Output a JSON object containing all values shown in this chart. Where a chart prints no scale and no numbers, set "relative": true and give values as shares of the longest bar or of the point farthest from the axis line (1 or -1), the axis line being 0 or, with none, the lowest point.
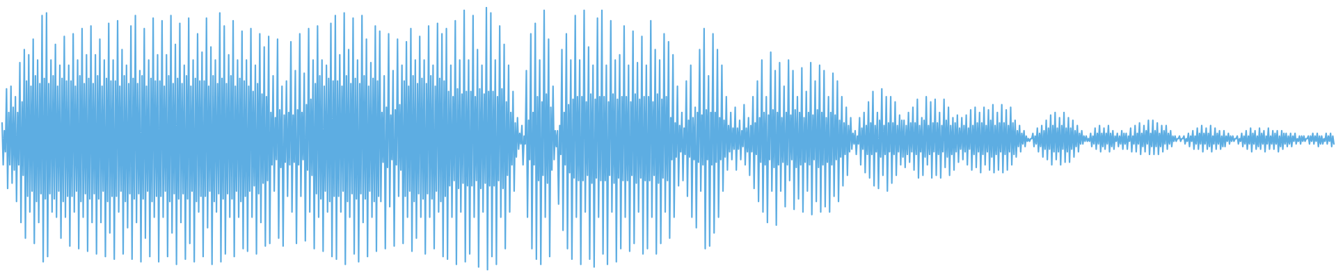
{
  "chart_data": {
    "type": "line",
    "relative": true,
    "color": "#5dade2",
    "categories": [
      null,
      null,
      null,
      null,
      null,
      null,
      null,
      null,
      null,
      null,
      null,
      null,
      null,
      null,
      null,
      null,
      null,
      null,
      null,
      null,
      null,
      null,
      null,
      null,
      null,
      null,
      null,
      null,
      null,
      null,
      null,
      null,
      null,
      null,
      null,
      null,
      null,
      null,
      null,
      null,
      null,
      null,
      null,
      null,
      null,
      null,
      null,
      null,
      null,
      null,
      null,
      null,
      null,
      null,
      null,
      null,
      null,
      null,
      null,
      null,
      null,
      null,
      null,
      null,
      null,
      null,
      null,
      null,
      null,
      null,
      null,
      null,
      null,
      null,
      null,
      null,
      null,
      null,
      null,
      null,
      null,
      null,
      null,
      null,
      null,
      null,
      null,
      null,
      null,
      null,
      null,
      null,
      null,
      null,
      null,
      null,
      null,
      null,
      null,
      null,
      null,
      null,
      null,
      null,
      null,
      null,
      null,
      null,
      null,
      null,
      null,
      null,
      null,
      null,
      null,
      null,
      null,
      null,
      null,
      null,
      null,
      null,
      null,
      null,
      null,
      null,
      null,
      null,
      null,
      null,
      null,
      null,
      null,
      null,
      null,
      null,
      null,
      null,
      null,
      null,
      null,
      null,
      null,
      null,
      null,
      null,
      null,
      null,
      null,
      null,
      null,
      null,
      null,
      null,
      null,
      null,
      null,
      null,
      null,
      null,
      null,
      null,
      null,
      null,
      null,
      null,
      null,
      null,
      null,
      null,
      null,
      null,
      null,
      null,
      null,
      null,
      null,
      null,
      null,
      null,
      null,
      null,
      null,
      null,
      null,
      null,
      null,
      null,
      null,
      null,
      null,
      null,
      null,
      null,
      null,
      null,
      null,
      null,
      null,
      null,
      null,
      null,
      null,
      null,
      null,
      null,
      null,
      null,
      null,
      null,
      null,
      null,
      null,
      null,
      null,
      null,
      null,
      null,
      null,
      null,
      null,
      null,
      null,
      null,
      null,
      null,
      null,
      null,
      null,
      null,
      null,
      null,
      null,
      null,
      null,
      null,
      null,
      null,
      null,
      null,
      null,
      null,
      null,
      null,
      null,
      null,
      null,
      null,
      null,
      null,
      null,
      null,
      null,
      null,
      null,
      null,
      null,
      null,
      null,
      null,
      null,
      null,
      null,
      null,
      null,
      null,
      null,
      null,
      null,
      null,
      null,
      null,
      null,
      null,
      null,
      null,
      null,
      null,
      null,
      null,
      null,
      null,
      null,
      null,
      null,
      null,
      null,
      null,
      null,
      null,
      null,
      null,
      null,
      null,
      null,
      null,
      null,
      null,
      null,
      null,
      null,
      null,
      null,
      null,
      null,
      null,
      null,
      null,
      null,
      null,
      null,
      null,
      null,
      null,
      null,
      null,
      null,
      null,
      null,
      null,
      null,
      null,
      null,
      null,
      null,
      null,
      null,
      null,
      null,
      null,
      null,
      null,
      null,
      null,
      null,
      null,
      null,
      null,
      null,
      null,
      null,
      null,
      null,
      null,
      null,
      null,
      null,
      null,
      null,
      null,
      null,
      null,
      null,
      null,
      null,
      null,
      null,
      null,
      null,
      null,
      null,
      null,
      null,
      null,
      null,
      null,
      null,
      null,
      null,
      null,
      null,
      null,
      null,
      null,
      null,
      null,
      null,
      null,
      null,
      null,
      null,
      null,
      null,
      null,
      null,
      null,
      null,
      null,
      null,
      null,
      null,
      null,
      null,
      null,
      null,
      null,
      null,
      null,
      null,
      null,
      null,
      null,
      null,
      null,
      null,
      null,
      null,
      null,
      null,
      null,
      null,
      null,
      null,
      null,
      null,
      null,
      null,
      null,
      null,
      null,
      null,
      null,
      null,
      null,
      null,
      null,
      null,
      null,
      null,
      null,
      null,
      null,
      null,
      null,
      null,
      null,
      null,
      null,
      null,
      null,
      null,
      null,
      null,
      null,
      null,
      null,
      null,
      null,
      null,
      null,
      null,
      null,
      null,
      null,
      null,
      null,
      null,
      null,
      null,
      null,
      null,
      null,
      null,
      null,
      null,
      null,
      null,
      null,
      null,
      null,
      null,
      null,
      null,
      null,
      null,
      null,
      null,
      null,
      null,
      null,
      null,
      null,
      null,
      null,
      null,
      null,
      null,
      null,
      null,
      null,
      null,
      null,
      null,
      null,
      null,
      null,
      null,
      null,
      null,
      null,
      null,
      null,
      null,
      null,
      null,
      null,
      null,
      null,
      null,
      null,
      null,
      null,
      null,
      null,
      null,
      null,
      null,
      null,
      null,
      null,
      null,
      null,
      null,
      null,
      null,
      null,
      null,
      null,
      null,
      null,
      null,
      null,
      null,
      null,
      null,
      null,
      null,
      null,
      null,
      null,
      null,
      null,
      null,
      null,
      null,
      null,
      null,
      null,
      null,
      null,
      null,
      null,
      null,
      null,
      null,
      null,
      null,
      null,
      null,
      null,
      null,
      null,
      null,
      null,
      null,
      null,
      null,
      null,
      null,
      null,
      null,
      null,
      null,
      null,
      null,
      null,
      null,
      null,
      null,
      null,
      null,
      null,
      null,
      null,
      null,
      null,
      null,
      null,
      null,
      null,
      null,
      null,
      null,
      null,
      null,
      null,
      null,
      null,
      null,
      null,
      null,
      null,
      null,
      null,
      null,
      null,
      null,
      null,
      null,
      null,
      null,
      null,
      null,
      null,
      null,
      null,
      null,
      null,
      null,
      null,
      null,
      null,
      null,
      null,
      null,
      null,
      null,
      null,
      null,
      null,
      null,
      null,
      null,
      null,
      null,
      null,
      null,
      null,
      null,
      null,
      null,
      null,
      null,
      null,
      null,
      null,
      null,
      null,
      null,
      null,
      null,
      null,
      null,
      null,
      null,
      null,
      null,
      null,
      null,
      null,
      null,
      null,
      null,
      null,
      null,
      null,
      null,
      null,
      null,
      null,
      null,
      null,
      null,
      null,
      null,
      null,
      null,
      null,
      null,
      null,
      null,
      null,
      null,
      null,
      null,
      null,
      null,
      null,
      null,
      null,
      null,
      null,
      null,
      null,
      null,
      null,
      null,
      null,
      null,
      null,
      null,
      null,
      null,
      null,
      null,
      null,
      null,
      null,
      null,
      null,
      null,
      null,
      null,
      null,
      null,
      null,
      null,
      null,
      null,
      null,
      null,
      null,
      null,
      null,
      null,
      null,
      null,
      null,
      null,
      null,
      null,
      null,
      null,
      null,
      null,
      null,
      null,
      null,
      null,
      null,
      null,
      null,
      null,
      null,
      null,
      null,
      null,
      null,
      null,
      null,
      null,
      null,
      null,
      null,
      null,
      null,
      null,
      null,
      null,
      null,
      null,
      null,
      null,
      null,
      null,
      null,
      null,
      null,
      null,
      null,
      null,
      null,
      null,
      null,
      null,
      null,
      null,
      null,
      null,
      null,
      null,
      null,
      null,
      null,
      null,
      null,
      null,
      null,
      null,
      null,
      null,
      null,
      null,
      null,
      null,
      null,
      null,
      null,
      null,
      null,
      null,
      null,
      null,
      null,
      null,
      null,
      null,
      null,
      null,
      null,
      null,
      null,
      null,
      null,
      null,
      null,
      null,
      null,
      null,
      null,
      null,
      null,
      null,
      null,
      null,
      null,
      null,
      null,
      null,
      null,
      null,
      null,
      null,
      null,
      null,
      null,
      null,
      null,
      null,
      null,
      null,
      null,
      null,
      null,
      null,
      null,
      null,
      null,
      null,
      null,
      null,
      null,
      null,
      null,
      null,
      null,
      null,
      null,
      null,
      null,
      null,
      null,
      null,
      null,
      null,
      null,
      null,
      null,
      null,
      null,
      null,
      null,
      null,
      null,
      null,
      null,
      null,
      null,
      null,
      null,
      null,
      null,
      null,
      null,
      null,
      null,
      null,
      null,
      null,
      null,
      null,
      null,
      null,
      null,
      null,
      null,
      null,
      null,
      null,
      null,
      null,
      null,
      null,
      null,
      null,
      null,
      null,
      null,
      null,
      null,
      null,
      null,
      null,
      null,
      null,
      null,
      null,
      null,
      null,
      null,
      null,
      null,
      null,
      null,
      null,
      null,
      null,
      null,
      null,
      null,
      null,
      null,
      null,
      null,
      null,
      null,
      null,
      null,
      null,
      null,
      null,
      null,
      null,
      null,
      null,
      null,
      null,
      null,
      null,
      null,
      null,
      null,
      null,
      null,
      null,
      null,
      null,
      null,
      null,
      null,
      null,
      null,
      null,
      null,
      null,
      null,
      null,
      null,
      null,
      null,
      null,
      null,
      null,
      null,
      null,
      null,
      null,
      null,
      null,
      null,
      null,
      null,
      null,
      null,
      null,
      null,
      null,
      null,
      null,
      null,
      null,
      null,
      null,
      null,
      null,
      null,
      null,
      null,
      null,
      null,
      null,
      null,
      null,
      null,
      null,
      null,
      null,
      null,
      null,
      null,
      null,
      null,
      null,
      null,
      null,
      null,
      null,
      null,
      null,
      null,
      null,
      null,
      null,
      null,
      null,
      null,
      null,
      null,
      null,
      null,
      null,
      null,
      null,
      null,
      null,
      null,
      null,
      null,
      null,
      null,
      null,
      null,
      null,
      null,
      null,
      null,
      null,
      null,
      null,
      null,
      null,
      null,
      null,
      null,
      null,
      null,
      null,
      null,
      null,
      null,
      null,
      null,
      null,
      null,
      null,
      null,
      null,
      null,
      null,
      null,
      null,
      null,
      null,
      null,
      null,
      null,
      null,
      null,
      null,
      null,
      null,
      null,
      null,
      null,
      null,
      null,
      null,
      null,
      null,
      null,
      null,
      null,
      null,
      null,
      null,
      null,
      null,
      null,
      null,
      null,
      null,
      null,
      null,
      null,
      null,
      null,
      null,
      null,
      null,
      null,
      null,
      null,
      null,
      null,
      null,
      null,
      null,
      null,
      null,
      null,
      null,
      null,
      null,
      null,
      null,
      null,
      null,
      null,
      null,
      null,
      null,
      null,
      null,
      null,
      null,
      null,
      null,
      null,
      null,
      null,
      null,
      null,
      null,
      null,
      null,
      null,
      null,
      null,
      null,
      null,
      null,
      null,
      null,
      null,
      null,
      null,
      null,
      null,
      null,
      null,
      null,
      null,
      null,
      null,
      null,
      null,
      null,
      null,
      null,
      null,
      null,
      null,
      null,
      null,
      null,
      null,
      null,
      null,
      null,
      null,
      null,
      null,
      null,
      null,
      null,
      null,
      null,
      null,
      null,
      null,
      null,
      null,
      null,
      null,
      null,
      null,
      null,
      null,
      null,
      null
    ],
    "values": [
      0.56,
      0.4,
      0.53,
      0.45,
      0.69,
      0.31,
      0.6,
      0.4,
      0.7,
      0.33,
      0.62,
      0.38,
      0.66,
      0.26,
      0.6,
      0.4,
      0.79,
      0.18,
      0.64,
      0.36,
      0.84,
      0.12,
      0.72,
      0.28,
      0.82,
      0.22,
      0.7,
      0.3,
      0.88,
      0.1,
      0.74,
      0.26,
      0.8,
      0.18,
      0.71,
      0.29,
      0.97,
      0.03,
      0.73,
      0.27,
      0.98,
      0.05,
      0.71,
      0.29,
      0.8,
      0.22,
      0.74,
      0.27,
      0.86,
      0.2,
      0.7,
      0.3,
      0.78,
      0.12,
      0.73,
      0.26,
      0.89,
      0.2,
      0.72,
      0.28,
      0.78,
      0.09,
      0.72,
      0.28,
      0.9,
      0.22,
      0.7,
      0.3,
      0.8,
      0.08,
      0.74,
      0.26,
      0.92,
      0.2,
      0.71,
      0.29,
      0.82,
      0.07,
      0.73,
      0.27,
      0.93,
      0.18,
      0.71,
      0.29,
      0.82,
      0.06,
      0.74,
      0.27,
      0.88,
      0.18,
      0.7,
      0.3,
      0.8,
      0.05,
      0.73,
      0.26,
      0.94,
      0.14,
      0.72,
      0.28,
      0.8,
      0.04,
      0.72,
      0.28,
      0.95,
      0.22,
      0.7,
      0.3,
      0.84,
      0.06,
      0.74,
      0.26,
      0.78,
      0.16,
      0.71,
      0.29,
      0.93,
      0.04,
      0.73,
      0.27,
      0.97,
      0.18,
      0.71,
      0.29,
      0.76,
      0.03,
      0.74,
      0.27,
      0.92,
      0.12,
      0.7,
      0.3,
      0.8,
      0.05,
      0.73,
      0.26,
      0.96,
      0.2,
      0.72,
      0.28,
      0.82,
      0.03,
      0.72,
      0.28,
      0.95,
      0.2,
      0.7,
      0.3,
      0.82,
      0.05,
      0.74,
      0.26,
      0.97,
      0.14,
      0.71,
      0.29,
      0.86,
      0.02,
      0.73,
      0.27,
      0.94,
      0.18,
      0.71,
      0.29,
      0.78,
      0.04,
      0.74,
      0.27,
      0.96,
      0.1,
      0.7,
      0.3,
      0.8,
      0.03,
      0.73,
      0.26,
      0.9,
      0.22,
      0.72,
      0.28,
      0.83,
      0.05,
      0.72,
      0.28,
      0.96,
      0.16,
      0.7,
      0.3,
      0.85,
      0.02,
      0.74,
      0.26,
      0.8,
      0.22,
      0.71,
      0.29,
      0.98,
      0.03,
      0.73,
      0.27,
      0.93,
      0.06,
      0.71,
      0.29,
      0.82,
      0.2,
      0.74,
      0.27,
      0.95,
      0.05,
      0.7,
      0.3,
      0.8,
      0.2,
      0.73,
      0.26,
      0.91,
      0.08,
      0.72,
      0.28,
      0.8,
      0.07,
      0.7,
      0.3,
      0.92,
      0.2,
      0.68,
      0.32,
      0.78,
      0.06,
      0.71,
      0.29,
      0.9,
      0.18,
      0.67,
      0.33,
      0.85,
      0.09,
      0.66,
      0.34,
      0.89,
      0.1,
      0.6,
      0.4,
      0.74,
      0.3,
      0.58,
      0.42,
      0.88,
      0.12,
      0.61,
      0.39,
      0.7,
      0.09,
      0.59,
      0.41,
      0.72,
      0.28,
      0.6,
      0.4,
      0.87,
      0.22,
      0.59,
      0.41,
      0.76,
      0.1,
      0.61,
      0.4,
      0.9,
      0.28,
      0.6,
      0.42,
      0.75,
      0.11,
      0.63,
      0.38,
      0.92,
      0.22,
      0.65,
      0.36,
      0.8,
      0.08,
      0.71,
      0.29,
      0.93,
      0.2,
      0.74,
      0.27,
      0.8,
      0.07,
      0.7,
      0.3,
      0.78,
      0.22,
      0.73,
      0.26,
      0.94,
      0.05,
      0.72,
      0.28,
      0.97,
      0.04,
      0.72,
      0.28,
      0.82,
      0.22,
      0.7,
      0.3,
      0.98,
      0.02,
      0.74,
      0.26,
      0.84,
      0.2,
      0.71,
      0.29,
      0.96,
      0.06,
      0.73,
      0.27,
      0.8,
      0.03,
      0.71,
      0.29,
      0.97,
      0.18,
      0.74,
      0.27,
      0.88,
      0.05,
      0.7,
      0.3,
      0.79,
      0.2,
      0.73,
      0.26,
      0.93,
      0.07,
      0.72,
      0.28,
      0.91,
      0.26,
      0.6,
      0.41,
      0.74,
      0.08,
      0.62,
      0.39,
      0.9,
      0.24,
      0.59,
      0.42,
      0.76,
      0.09,
      0.61,
      0.4,
      0.88,
      0.28,
      0.63,
      0.38,
      0.78,
      0.1,
      0.72,
      0.28,
      0.87,
      0.2,
      0.7,
      0.3,
      0.92,
      0.07,
      0.74,
      0.26,
      0.8,
      0.12,
      0.71,
      0.29,
      0.89,
      0.2,
      0.73,
      0.27,
      0.8,
      0.06,
      0.71,
      0.29,
      0.93,
      0.2,
      0.74,
      0.27,
      0.78,
      0.08,
      0.7,
      0.3,
      0.94,
      0.22,
      0.73,
      0.26,
      0.9,
      0.05,
      0.72,
      0.28,
      0.92,
      0.04,
      0.68,
      0.32,
      0.78,
      0.2,
      0.66,
      0.34,
      0.95,
      0.02,
      0.69,
      0.31,
      0.8,
      0.22,
      0.67,
      0.33,
      0.99,
      0.03,
      0.68,
      0.32,
      0.8,
      0.06,
      0.68,
      0.32,
      0.97,
      0.2,
      0.66,
      0.34,
      0.84,
      0.01,
      0.69,
      0.31,
      0.78,
      0.22,
      0.67,
      0.33,
      1.0,
      0.0,
      0.68,
      0.32,
      0.98,
      0.05,
      0.68,
      0.32,
      0.8,
      0.02,
      0.66,
      0.34,
      0.93,
      0.2,
      0.69,
      0.31,
      0.86,
      0.08,
      0.64,
      0.36,
      0.78,
      0.22,
      0.6,
      0.4,
      0.68,
      0.3,
      0.56,
      0.43,
      0.58,
      0.46,
      0.52,
      0.48,
      0.55,
      0.4,
      0.51,
      0.48,
      0.76,
      0.2,
      0.57,
      0.42,
      0.9,
      0.08,
      0.6,
      0.4,
      0.94,
      0.04,
      0.66,
      0.34,
      0.8,
      0.02,
      0.64,
      0.36,
      0.99,
      0.2,
      0.67,
      0.33,
      0.88,
      0.05,
      0.62,
      0.38,
      0.7,
      0.42,
      0.53,
      0.47,
      0.53,
      0.25,
      0.55,
      0.44,
      0.84,
      0.15,
      0.6,
      0.4,
      0.9,
      0.08,
      0.63,
      0.37,
      0.8,
      0.04,
      0.65,
      0.35,
      0.97,
      0.2,
      0.66,
      0.34,
      0.8,
      0.02,
      0.66,
      0.34,
      0.99,
      0.22,
      0.64,
      0.36,
      0.85,
      0.04,
      0.67,
      0.33,
      0.78,
      0.01,
      0.65,
      0.35,
      0.96,
      0.2,
      0.66,
      0.34,
      0.99,
      0.06,
      0.66,
      0.34,
      0.78,
      0.02,
      0.64,
      0.36,
      0.95,
      0.22,
      0.67,
      0.33,
      0.8,
      0.03,
      0.65,
      0.35,
      0.82,
      0.08,
      0.66,
      0.34,
      0.93,
      0.2,
      0.66,
      0.34,
      0.78,
      0.07,
      0.64,
      0.36,
      0.91,
      0.1,
      0.67,
      0.33,
      0.79,
      0.22,
      0.65,
      0.35,
      0.89,
      0.06,
      0.66,
      0.34,
      0.78,
      0.08,
      0.66,
      0.34,
      0.95,
      0.2,
      0.64,
      0.36,
      0.84,
      0.06,
      0.67,
      0.33,
      0.8,
      0.1,
      0.65,
      0.35,
      0.9,
      0.22,
      0.66,
      0.34,
      0.87,
      0.12,
      0.58,
      0.42,
      0.82,
      0.2,
      0.56,
      0.43,
      0.7,
      0.32,
      0.55,
      0.45,
      0.6,
      0.34,
      0.54,
      0.44,
      0.72,
      0.28,
      0.57,
      0.43,
      0.78,
      0.2,
      0.58,
      0.42,
      0.62,
      0.16,
      0.6,
      0.41,
      0.84,
      0.3,
      0.59,
      0.4,
      0.92,
      0.08,
      0.61,
      0.42,
      0.74,
      0.09,
      0.6,
      0.4,
      0.9,
      0.14,
      0.6,
      0.41,
      0.84,
      0.2,
      0.58,
      0.42,
      0.78,
      0.3,
      0.57,
      0.43,
      0.66,
      0.38,
      0.55,
      0.45,
      0.6,
      0.42,
      0.54,
      0.46,
      0.62,
      0.38,
      0.54,
      0.46,
      0.57,
      0.42,
      0.53,
      0.47,
      0.63,
      0.4,
      0.54,
      0.45,
      0.58,
      0.36,
      0.55,
      0.45,
      0.66,
      0.31,
      0.56,
      0.44,
      0.72,
      0.26,
      0.58,
      0.41,
      0.8,
      0.22,
      0.6,
      0.4,
      0.66,
      0.18,
      0.59,
      0.42,
      0.83,
      0.3,
      0.61,
      0.39,
      0.76,
      0.17,
      0.6,
      0.4,
      0.79,
      0.3,
      0.58,
      0.41,
      0.7,
      0.24,
      0.6,
      0.4,
      0.8,
      0.34,
      0.59,
      0.42,
      0.76,
      0.23,
      0.61,
      0.39,
      0.66,
      0.27,
      0.6,
      0.4,
      0.77,
      0.22,
      0.58,
      0.41,
      0.68,
      0.3,
      0.6,
      0.4,
      0.79,
      0.21,
      0.59,
      0.42,
      0.72,
      0.26,
      0.61,
      0.39,
      0.78,
      0.22,
      0.6,
      0.4,
      0.76,
      0.24,
      0.58,
      0.41,
      0.66,
      0.22,
      0.6,
      0.4,
      0.75,
      0.28,
      0.59,
      0.42,
      0.72,
      0.26,
      0.57,
      0.43,
      0.66,
      0.32,
      0.56,
      0.44,
      0.62,
      0.36,
      0.55,
      0.45,
      0.58,
      0.46,
      0.52,
      0.48,
      0.53,
      0.44,
      0.51,
      0.48,
      0.58,
      0.4,
      0.54,
      0.46,
      0.6,
      0.37,
      0.55,
      0.44,
      0.64,
      0.35,
      0.56,
      0.44,
      0.68,
      0.32,
      0.55,
      0.45,
      0.6,
      0.31,
      0.57,
      0.43,
      0.69,
      0.36,
      0.55,
      0.44,
      0.66,
      0.3,
      0.56,
      0.45,
      0.66,
      0.33,
      0.56,
      0.44,
      0.64,
      0.36,
      0.55,
      0.45,
      0.59,
      0.4,
      0.57,
      0.43,
      0.57,
      0.39,
      0.55,
      0.44,
      0.6,
      0.41,
      0.56,
      0.45,
      0.62,
      0.38,
      0.56,
      0.44,
      0.65,
      0.35,
      0.55,
      0.45,
      0.58,
      0.36,
      0.57,
      0.43,
      0.66,
      0.4,
      0.55,
      0.44,
      0.64,
      0.35,
      0.56,
      0.45,
      0.65,
      0.36,
      0.56,
      0.44,
      0.6,
      0.35,
      0.55,
      0.45,
      0.65,
      0.39,
      0.57,
      0.43,
      0.62,
      0.36,
      0.55,
      0.44,
      0.58,
      0.38,
      0.56,
      0.45,
      0.59,
      0.41,
      0.54,
      0.46,
      0.58,
      0.42,
      0.55,
      0.45,
      0.59,
      0.4,
      0.54,
      0.46,
      0.61,
      0.38,
      0.55,
      0.44,
      0.62,
      0.39,
      0.56,
      0.45,
      0.6,
      0.37,
      0.56,
      0.44,
      0.62,
      0.4,
      0.55,
      0.45,
      0.61,
      0.38,
      0.57,
      0.43,
      0.63,
      0.37,
      0.55,
      0.44,
      0.6,
      0.38,
      0.56,
      0.45,
      0.63,
      0.37,
      0.56,
      0.44,
      0.61,
      0.38,
      0.55,
      0.45,
      0.62,
      0.4,
      0.56,
      0.44,
      0.57,
      0.43,
      0.53,
      0.47,
      0.55,
      0.45,
      0.52,
      0.48,
      0.53,
      0.47,
      0.51,
      0.49,
      0.5,
      0.49,
      0.5,
      0.5,
      0.52,
      0.47,
      0.51,
      0.48,
      0.54,
      0.45,
      0.52,
      0.47,
      0.55,
      0.43,
      0.53,
      0.46,
      0.57,
      0.42,
      0.54,
      0.46,
      0.59,
      0.4,
      0.55,
      0.45,
      0.6,
      0.42,
      0.54,
      0.45,
      0.58,
      0.4,
      0.55,
      0.46,
      0.6,
      0.41,
      0.54,
      0.45,
      0.58,
      0.41,
      0.54,
      0.46,
      0.57,
      0.43,
      0.53,
      0.47,
      0.55,
      0.45,
      0.52,
      0.48,
      0.53,
      0.48,
      0.51,
      0.49,
      0.51,
      0.49,
      0.5,
      0.49,
      0.52,
      0.47,
      0.51,
      0.48,
      0.54,
      0.46,
      0.52,
      0.48,
      0.55,
      0.45,
      0.52,
      0.47,
      0.54,
      0.46,
      0.52,
      0.48,
      0.55,
      0.45,
      0.52,
      0.47,
      0.53,
      0.46,
      0.51,
      0.49,
      0.52,
      0.47,
      0.51,
      0.48,
      0.53,
      0.46,
      0.52,
      0.48,
      0.52,
      0.46,
      0.51,
      0.49,
      0.54,
      0.45,
      0.51,
      0.48,
      0.55,
      0.45,
      0.52,
      0.48,
      0.56,
      0.44,
      0.52,
      0.47,
      0.55,
      0.45,
      0.53,
      0.48,
      0.57,
      0.44,
      0.52,
      0.47,
      0.57,
      0.44,
      0.53,
      0.47,
      0.56,
      0.44,
      0.52,
      0.47,
      0.55,
      0.45,
      0.53,
      0.48,
      0.55,
      0.46,
      0.52,
      0.48,
      0.53,
      0.47,
      0.51,
      0.49,
      0.51,
      0.49,
      0.5,
      0.5,
      0.51,
      0.49,
      0.5,
      0.5,
      0.51,
      0.48,
      0.5,
      0.49,
      0.52,
      0.47,
      0.51,
      0.49,
      0.53,
      0.46,
      0.51,
      0.48,
      0.54,
      0.46,
      0.52,
      0.48,
      0.55,
      0.45,
      0.52,
      0.48,
      0.54,
      0.46,
      0.52,
      0.47,
      0.55,
      0.45,
      0.51,
      0.48,
      0.54,
      0.46,
      0.52,
      0.48,
      0.53,
      0.46,
      0.51,
      0.47,
      0.53,
      0.47,
      0.51,
      0.49,
      0.52,
      0.48,
      0.51,
      0.49,
      0.51,
      0.49,
      0.5,
      0.5,
      0.51,
      0.48,
      0.5,
      0.49,
      0.52,
      0.47,
      0.51,
      0.48,
      0.53,
      0.46,
      0.51,
      0.48,
      0.54,
      0.45,
      0.52,
      0.48,
      0.53,
      0.46,
      0.51,
      0.47,
      0.54,
      0.46,
      0.52,
      0.48,
      0.53,
      0.45,
      0.51,
      0.48,
      0.54,
      0.46,
      0.51,
      0.48,
      0.53,
      0.46,
      0.52,
      0.48,
      0.53,
      0.45,
      0.51,
      0.47,
      0.53,
      0.46,
      0.52,
      0.48,
      0.52,
      0.47,
      0.51,
      0.48,
      0.52,
      0.47,
      0.51,
      0.49,
      0.52,
      0.48,
      0.5,
      0.49,
      0.51,
      0.48,
      0.51,
      0.49,
      0.51,
      0.49,
      0.5,
      0.5,
      0.51,
      0.48,
      0.51,
      0.49,
      0.52,
      0.48,
      0.51,
      0.49,
      0.52,
      0.47,
      0.51,
      0.48,
      0.51,
      0.48,
      0.5,
      0.49,
      0.52,
      0.48,
      0.51,
      0.49,
      0.52,
      0.47,
      0.51,
      0.48
    ]
  }
}
